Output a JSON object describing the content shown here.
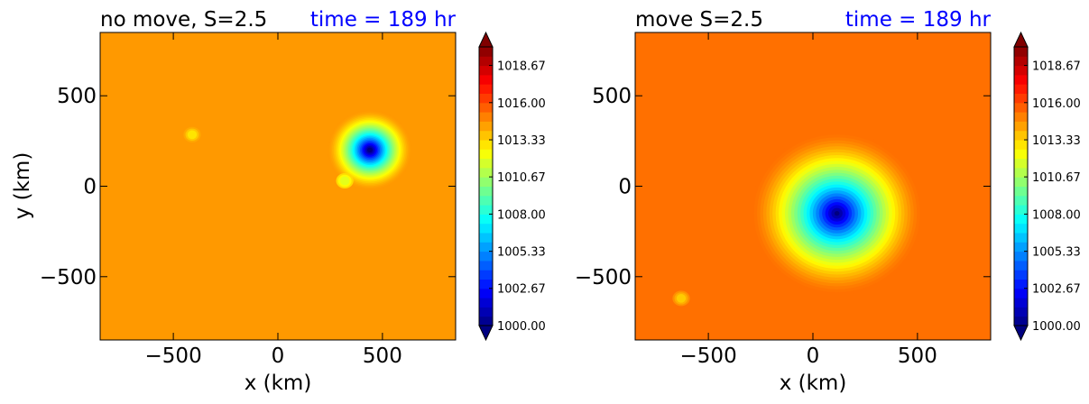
{
  "chart_data": [
    {
      "type": "heatmap",
      "title_left": "no move, S=2.5",
      "title_right": "time = 189 hr",
      "xlabel": "x (km)",
      "ylabel": "y (km)",
      "xlim": [
        -850,
        850
      ],
      "ylim": [
        -850,
        850
      ],
      "xticks": [
        -500,
        0,
        500
      ],
      "yticks": [
        -500,
        0,
        500
      ],
      "xtick_labels": [
        "−500",
        "0",
        "500"
      ],
      "ytick_labels": [
        "−500",
        "0",
        "500"
      ],
      "background_value": 1014.5,
      "center": [
        440,
        200
      ],
      "min_value": 1000.0,
      "features": [
        {
          "x": 320,
          "y": 30,
          "value": 1012.0
        },
        {
          "x": -410,
          "y": 285,
          "value": 1013.0
        }
      ],
      "colorbar": {
        "min": 1000.0,
        "max": 1020.0,
        "ticks": [
          1000.0,
          1002.67,
          1005.33,
          1008.0,
          1010.67,
          1013.33,
          1016.0,
          1018.67
        ],
        "tick_labels": [
          "1000.00",
          "1002.67",
          "1005.33",
          "1008.00",
          "1010.67",
          "1013.33",
          "1016.00",
          "1018.67"
        ],
        "extend": "both"
      }
    },
    {
      "type": "heatmap",
      "title_left": "move S=2.5",
      "title_right": "time = 189 hr",
      "xlabel": "x (km)",
      "ylabel": "",
      "xlim": [
        -850,
        850
      ],
      "ylim": [
        -850,
        850
      ],
      "xticks": [
        -500,
        0,
        500
      ],
      "yticks": [
        -500,
        0,
        500
      ],
      "xtick_labels": [
        "−500",
        "0",
        "500"
      ],
      "ytick_labels": [
        "−500",
        "0",
        "500"
      ],
      "background_value": 1015.3,
      "center": [
        115,
        -150
      ],
      "min_value": 1000.0,
      "features": [
        {
          "x": -630,
          "y": -620,
          "value": 1013.5
        }
      ],
      "colorbar": {
        "min": 1000.0,
        "max": 1020.0,
        "ticks": [
          1000.0,
          1002.67,
          1005.33,
          1008.0,
          1010.67,
          1013.33,
          1016.0,
          1018.67
        ],
        "tick_labels": [
          "1000.00",
          "1002.67",
          "1005.33",
          "1008.00",
          "1010.67",
          "1013.33",
          "1016.00",
          "1018.67"
        ],
        "extend": "both"
      }
    }
  ],
  "colors": {
    "title_right": "#0000ff",
    "text": "#000000",
    "axis": "#000000"
  }
}
